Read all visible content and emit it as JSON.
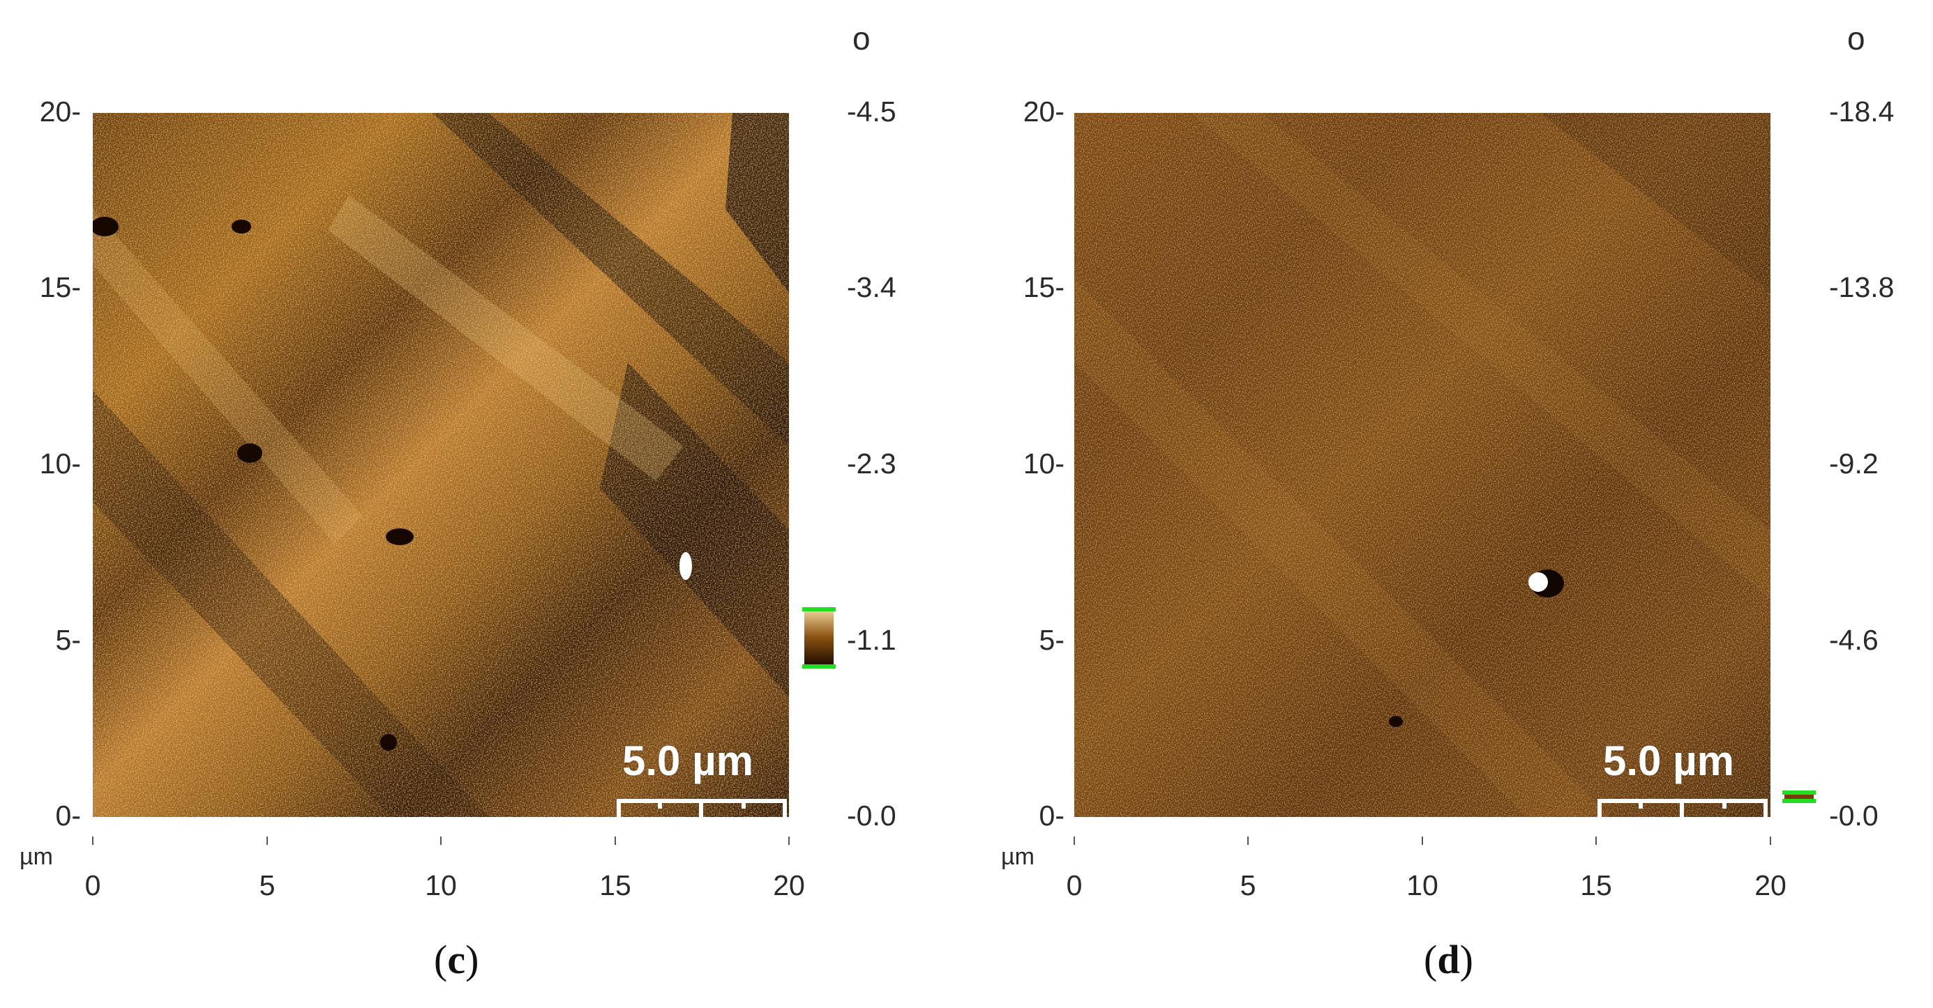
{
  "panels": [
    {
      "caption": "c",
      "x_ticks": [
        "0",
        "5",
        "10",
        "15",
        "20"
      ],
      "y_ticks": [
        "0-",
        "5-",
        "10-",
        "15-",
        "20-"
      ],
      "colorbar_ticks": [
        "-0.0",
        "-1.1",
        "-2.3",
        "-3.4",
        "-4.5"
      ],
      "unit": "µm",
      "colorbar_unit": "o",
      "scale_bar": "5.0 µm"
    },
    {
      "caption": "d",
      "x_ticks": [
        "0",
        "5",
        "10",
        "15",
        "20"
      ],
      "y_ticks": [
        "0-",
        "5-",
        "10-",
        "15-",
        "20-"
      ],
      "colorbar_ticks": [
        "-0.0",
        "-4.6",
        "-9.2",
        "-13.8",
        "-18.4"
      ],
      "unit": "µm",
      "colorbar_unit": "o",
      "scale_bar": "5.0 µm"
    }
  ],
  "colors": {
    "afm_dark": "#2a1200",
    "afm_mid": "#8a5210",
    "afm_light": "#e7b866",
    "colorbar_marker": "#22dd22"
  }
}
